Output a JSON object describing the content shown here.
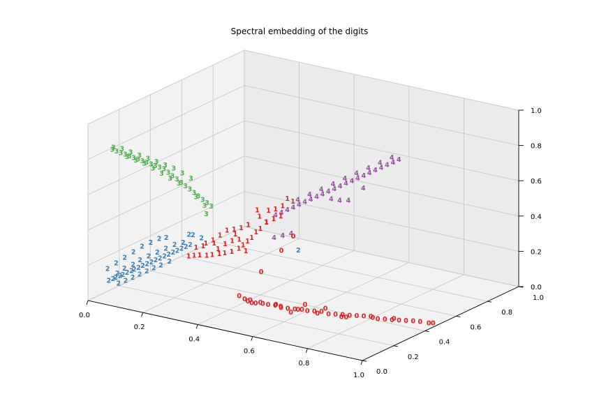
{
  "chart_data": {
    "type": "scatter",
    "projection": "3d",
    "title": "Spectral embedding of the digits",
    "xlim": [
      0,
      1
    ],
    "ylim": [
      0,
      1
    ],
    "zlim": [
      0,
      1
    ],
    "grid": true,
    "x_ticks": [
      "0.0",
      "0.2",
      "0.4",
      "0.6",
      "0.8",
      "1.0"
    ],
    "y_ticks": [
      "0.0",
      "0.2",
      "0.4",
      "0.6",
      "0.8",
      "1.0"
    ],
    "z_ticks": [
      "0.0",
      "0.2",
      "0.4",
      "0.6",
      "0.8",
      "1.0"
    ],
    "colors": {
      "0": "#e41a1c",
      "1": "#e41a1c",
      "2": "#377eb8",
      "3": "#4daf4a",
      "4": "#984ea3"
    },
    "series": [
      {
        "label": "0",
        "points": [
          [
            0.99,
            0.47,
            0.0
          ],
          [
            0.98,
            0.46,
            0.0
          ],
          [
            0.96,
            0.44,
            0.01
          ],
          [
            0.94,
            0.43,
            0.01
          ],
          [
            0.92,
            0.42,
            0.01
          ],
          [
            0.9,
            0.41,
            0.01
          ],
          [
            0.88,
            0.4,
            0.01
          ],
          [
            0.86,
            0.39,
            0.01
          ],
          [
            0.84,
            0.38,
            0.01
          ],
          [
            0.82,
            0.37,
            0.02
          ],
          [
            0.8,
            0.36,
            0.02
          ],
          [
            0.78,
            0.35,
            0.02
          ],
          [
            0.76,
            0.34,
            0.02
          ],
          [
            0.74,
            0.33,
            0.02
          ],
          [
            0.72,
            0.32,
            0.02
          ],
          [
            0.7,
            0.31,
            0.02
          ],
          [
            0.68,
            0.3,
            0.03
          ],
          [
            0.66,
            0.29,
            0.03
          ],
          [
            0.64,
            0.28,
            0.03
          ],
          [
            0.62,
            0.28,
            0.03
          ],
          [
            0.6,
            0.27,
            0.03
          ],
          [
            0.58,
            0.26,
            0.03
          ],
          [
            0.56,
            0.25,
            0.04
          ],
          [
            0.54,
            0.25,
            0.04
          ],
          [
            0.52,
            0.24,
            0.04
          ],
          [
            0.5,
            0.24,
            0.04
          ],
          [
            0.48,
            0.23,
            0.04
          ],
          [
            0.46,
            0.23,
            0.05
          ],
          [
            0.44,
            0.23,
            0.05
          ],
          [
            0.42,
            0.23,
            0.06
          ],
          [
            0.7,
            0.29,
            0.06
          ],
          [
            0.62,
            0.3,
            0.05
          ],
          [
            0.77,
            0.3,
            0.03
          ],
          [
            0.52,
            0.29,
            0.02
          ],
          [
            0.87,
            0.43,
            0.0
          ],
          [
            0.81,
            0.4,
            0.0
          ],
          [
            0.58,
            0.28,
            0.0
          ],
          [
            0.66,
            0.31,
            0.01
          ],
          [
            0.73,
            0.34,
            0.0
          ],
          [
            0.44,
            0.25,
            0.03
          ],
          [
            0.46,
            0.24,
            0.03
          ],
          [
            0.48,
            0.26,
            0.03
          ],
          [
            0.55,
            0.27,
            0.02
          ],
          [
            0.6,
            0.29,
            0.02
          ],
          [
            0.46,
            0.3,
            0.18
          ],
          [
            0.5,
            0.36,
            0.29
          ],
          [
            0.52,
            0.4,
            0.36
          ]
        ]
      },
      {
        "label": "1",
        "points": [
          [
            0.27,
            0.17,
            0.26
          ],
          [
            0.29,
            0.17,
            0.27
          ],
          [
            0.31,
            0.17,
            0.28
          ],
          [
            0.33,
            0.18,
            0.28
          ],
          [
            0.35,
            0.18,
            0.29
          ],
          [
            0.37,
            0.19,
            0.3
          ],
          [
            0.39,
            0.19,
            0.31
          ],
          [
            0.41,
            0.2,
            0.32
          ],
          [
            0.43,
            0.21,
            0.34
          ],
          [
            0.44,
            0.22,
            0.36
          ],
          [
            0.45,
            0.23,
            0.38
          ],
          [
            0.46,
            0.24,
            0.4
          ],
          [
            0.47,
            0.25,
            0.43
          ],
          [
            0.48,
            0.26,
            0.45
          ],
          [
            0.49,
            0.28,
            0.48
          ],
          [
            0.46,
            0.29,
            0.5
          ],
          [
            0.44,
            0.31,
            0.52
          ],
          [
            0.47,
            0.33,
            0.52
          ],
          [
            0.49,
            0.34,
            0.53
          ],
          [
            0.51,
            0.35,
            0.55
          ],
          [
            0.53,
            0.38,
            0.57
          ],
          [
            0.43,
            0.27,
            0.45
          ],
          [
            0.41,
            0.26,
            0.43
          ],
          [
            0.39,
            0.25,
            0.42
          ],
          [
            0.37,
            0.24,
            0.41
          ],
          [
            0.35,
            0.23,
            0.38
          ],
          [
            0.33,
            0.22,
            0.35
          ],
          [
            0.31,
            0.21,
            0.33
          ],
          [
            0.3,
            0.21,
            0.31
          ],
          [
            0.28,
            0.2,
            0.3
          ],
          [
            0.36,
            0.2,
            0.32
          ],
          [
            0.38,
            0.21,
            0.35
          ],
          [
            0.4,
            0.22,
            0.37
          ],
          [
            0.42,
            0.23,
            0.38
          ],
          [
            0.4,
            0.24,
            0.4
          ],
          [
            0.45,
            0.22,
            0.33
          ],
          [
            0.48,
            0.3,
            0.47
          ],
          [
            0.5,
            0.31,
            0.49
          ],
          [
            0.52,
            0.32,
            0.51
          ],
          [
            0.34,
            0.21,
            0.34
          ],
          [
            0.51,
            0.38,
            0.58
          ]
        ]
      },
      {
        "label": "2",
        "points": [
          [
            0.07,
            0.01,
            0.12
          ],
          [
            0.08,
            0.02,
            0.13
          ],
          [
            0.09,
            0.02,
            0.14
          ],
          [
            0.1,
            0.03,
            0.15
          ],
          [
            0.11,
            0.03,
            0.16
          ],
          [
            0.12,
            0.04,
            0.17
          ],
          [
            0.13,
            0.05,
            0.18
          ],
          [
            0.14,
            0.05,
            0.19
          ],
          [
            0.15,
            0.06,
            0.2
          ],
          [
            0.16,
            0.07,
            0.21
          ],
          [
            0.17,
            0.08,
            0.22
          ],
          [
            0.18,
            0.09,
            0.23
          ],
          [
            0.19,
            0.1,
            0.24
          ],
          [
            0.2,
            0.11,
            0.25
          ],
          [
            0.21,
            0.12,
            0.26
          ],
          [
            0.22,
            0.13,
            0.27
          ],
          [
            0.23,
            0.14,
            0.28
          ],
          [
            0.24,
            0.15,
            0.29
          ],
          [
            0.25,
            0.16,
            0.3
          ],
          [
            0.26,
            0.17,
            0.31
          ],
          [
            0.27,
            0.18,
            0.32
          ],
          [
            0.09,
            0.03,
            0.16
          ],
          [
            0.11,
            0.04,
            0.19
          ],
          [
            0.13,
            0.06,
            0.21
          ],
          [
            0.15,
            0.07,
            0.24
          ],
          [
            0.17,
            0.09,
            0.26
          ],
          [
            0.19,
            0.11,
            0.28
          ],
          [
            0.21,
            0.13,
            0.3
          ],
          [
            0.23,
            0.15,
            0.32
          ],
          [
            0.25,
            0.17,
            0.33
          ],
          [
            0.1,
            0.02,
            0.11
          ],
          [
            0.12,
            0.03,
            0.13
          ],
          [
            0.14,
            0.04,
            0.15
          ],
          [
            0.16,
            0.05,
            0.17
          ],
          [
            0.18,
            0.06,
            0.19
          ],
          [
            0.2,
            0.07,
            0.21
          ],
          [
            0.22,
            0.08,
            0.23
          ],
          [
            0.24,
            0.1,
            0.25
          ],
          [
            0.06,
            0.02,
            0.18
          ],
          [
            0.08,
            0.04,
            0.21
          ],
          [
            0.1,
            0.06,
            0.24
          ],
          [
            0.12,
            0.08,
            0.27
          ],
          [
            0.14,
            0.1,
            0.3
          ],
          [
            0.16,
            0.12,
            0.32
          ],
          [
            0.18,
            0.14,
            0.34
          ],
          [
            0.2,
            0.15,
            0.35
          ],
          [
            0.28,
            0.18,
            0.38
          ],
          [
            0.3,
            0.2,
            0.36
          ],
          [
            0.26,
            0.19,
            0.37
          ],
          [
            0.55,
            0.38,
            0.3
          ]
        ]
      },
      {
        "label": "3",
        "points": [
          [
            0.02,
            0.12,
            0.8
          ],
          [
            0.03,
            0.13,
            0.79
          ],
          [
            0.04,
            0.14,
            0.78
          ],
          [
            0.05,
            0.15,
            0.77
          ],
          [
            0.06,
            0.16,
            0.76
          ],
          [
            0.07,
            0.17,
            0.75
          ],
          [
            0.08,
            0.18,
            0.74
          ],
          [
            0.09,
            0.19,
            0.73
          ],
          [
            0.1,
            0.2,
            0.72
          ],
          [
            0.11,
            0.21,
            0.71
          ],
          [
            0.12,
            0.22,
            0.7
          ],
          [
            0.13,
            0.23,
            0.69
          ],
          [
            0.14,
            0.24,
            0.68
          ],
          [
            0.15,
            0.25,
            0.66
          ],
          [
            0.16,
            0.26,
            0.64
          ],
          [
            0.17,
            0.27,
            0.62
          ],
          [
            0.18,
            0.28,
            0.6
          ],
          [
            0.19,
            0.29,
            0.58
          ],
          [
            0.2,
            0.3,
            0.56
          ],
          [
            0.21,
            0.31,
            0.54
          ],
          [
            0.22,
            0.32,
            0.52
          ],
          [
            0.23,
            0.33,
            0.5
          ],
          [
            0.24,
            0.34,
            0.48
          ],
          [
            0.25,
            0.35,
            0.46
          ],
          [
            0.03,
            0.11,
            0.82
          ],
          [
            0.05,
            0.13,
            0.81
          ],
          [
            0.07,
            0.15,
            0.79
          ],
          [
            0.09,
            0.17,
            0.77
          ],
          [
            0.11,
            0.19,
            0.75
          ],
          [
            0.13,
            0.21,
            0.73
          ],
          [
            0.15,
            0.23,
            0.71
          ],
          [
            0.17,
            0.25,
            0.69
          ],
          [
            0.19,
            0.27,
            0.66
          ],
          [
            0.21,
            0.29,
            0.63
          ],
          [
            0.06,
            0.2,
            0.72
          ],
          [
            0.08,
            0.22,
            0.7
          ],
          [
            0.1,
            0.24,
            0.67
          ],
          [
            0.12,
            0.26,
            0.64
          ],
          [
            0.14,
            0.28,
            0.61
          ],
          [
            0.16,
            0.3,
            0.58
          ],
          [
            0.04,
            0.18,
            0.74
          ],
          [
            0.26,
            0.3,
            0.44
          ],
          [
            0.22,
            0.36,
            0.45
          ],
          [
            0.2,
            0.34,
            0.5
          ]
        ]
      },
      {
        "label": "4",
        "points": [
          [
            0.62,
            0.9,
            0.62
          ],
          [
            0.61,
            0.88,
            0.61
          ],
          [
            0.6,
            0.86,
            0.6
          ],
          [
            0.59,
            0.84,
            0.59
          ],
          [
            0.58,
            0.82,
            0.58
          ],
          [
            0.57,
            0.8,
            0.57
          ],
          [
            0.56,
            0.78,
            0.56
          ],
          [
            0.55,
            0.76,
            0.55
          ],
          [
            0.54,
            0.74,
            0.54
          ],
          [
            0.53,
            0.72,
            0.53
          ],
          [
            0.52,
            0.7,
            0.52
          ],
          [
            0.51,
            0.68,
            0.51
          ],
          [
            0.5,
            0.66,
            0.5
          ],
          [
            0.49,
            0.64,
            0.49
          ],
          [
            0.48,
            0.62,
            0.48
          ],
          [
            0.47,
            0.6,
            0.47
          ],
          [
            0.46,
            0.58,
            0.46
          ],
          [
            0.45,
            0.56,
            0.45
          ],
          [
            0.44,
            0.54,
            0.44
          ],
          [
            0.43,
            0.52,
            0.43
          ],
          [
            0.42,
            0.5,
            0.42
          ],
          [
            0.41,
            0.48,
            0.41
          ],
          [
            0.6,
            0.89,
            0.63
          ],
          [
            0.58,
            0.85,
            0.61
          ],
          [
            0.56,
            0.81,
            0.59
          ],
          [
            0.54,
            0.77,
            0.57
          ],
          [
            0.52,
            0.73,
            0.55
          ],
          [
            0.5,
            0.69,
            0.53
          ],
          [
            0.48,
            0.65,
            0.51
          ],
          [
            0.46,
            0.61,
            0.49
          ],
          [
            0.44,
            0.57,
            0.47
          ],
          [
            0.57,
            0.76,
            0.5
          ],
          [
            0.53,
            0.68,
            0.45
          ],
          [
            0.55,
            0.7,
            0.45
          ],
          [
            0.51,
            0.66,
            0.46
          ],
          [
            0.47,
            0.42,
            0.34
          ],
          [
            0.49,
            0.44,
            0.35
          ],
          [
            0.45,
            0.4,
            0.33
          ]
        ]
      }
    ]
  }
}
